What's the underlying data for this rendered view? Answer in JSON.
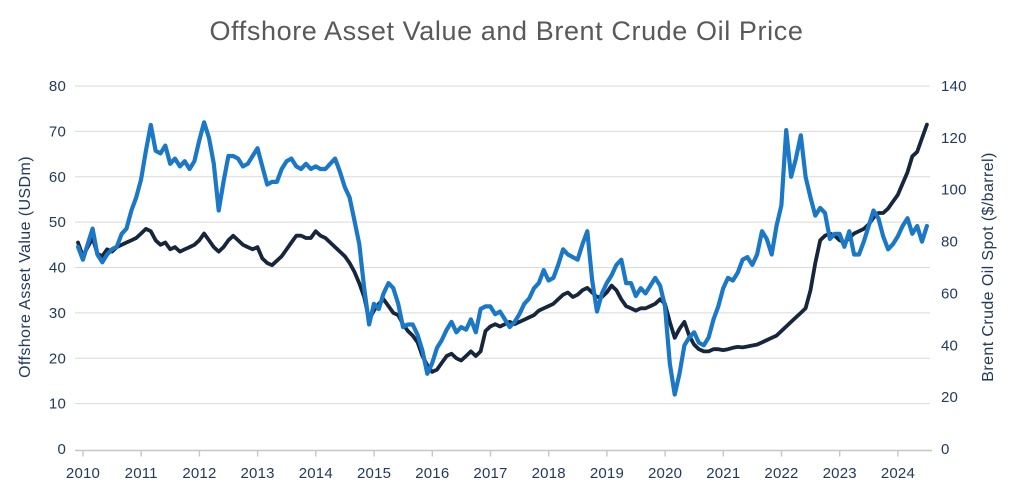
{
  "chart": {
    "title": "Offshore Asset Value and Brent Crude Oil Price"
  },
  "chart_data": {
    "type": "line",
    "title": "Offshore Asset Value and Brent Crude Oil Price",
    "x_unit": "month",
    "x_start": "2010-01",
    "x_end": "2024-08",
    "x_tick_labels": [
      "2010",
      "2011",
      "2012",
      "2013",
      "2014",
      "2015",
      "2016",
      "2017",
      "2018",
      "2019",
      "2020",
      "2021",
      "2022",
      "2023",
      "2024"
    ],
    "grid": "horizontal",
    "legend": "none",
    "left_axis": {
      "label": "Offshore Asset Value (USDm)",
      "min": 0,
      "max": 80,
      "ticks": [
        0,
        10,
        20,
        30,
        40,
        50,
        60,
        70,
        80
      ]
    },
    "right_axis": {
      "label": "Brent Crude Oil Spot ($/barrel)",
      "min": 0,
      "max": 140,
      "ticks": [
        0,
        20,
        40,
        60,
        80,
        100,
        120,
        140
      ]
    },
    "series": [
      {
        "name": "Offshore Asset Value",
        "axis": "left",
        "color": "#16263d",
        "values": [
          45.5,
          42.5,
          44.5,
          46.5,
          43,
          42.5,
          44,
          43.5,
          44.5,
          45,
          45.5,
          46,
          46.5,
          47.5,
          48.5,
          48,
          46,
          45,
          45.5,
          44,
          44.5,
          43.5,
          44,
          44.5,
          45,
          46,
          47.5,
          46,
          44.5,
          43.5,
          44.5,
          46,
          47,
          46,
          45,
          44.5,
          44,
          44.5,
          42,
          41,
          40.5,
          41.5,
          42.5,
          44,
          45.5,
          47,
          47,
          46.5,
          46.5,
          48,
          47,
          46.5,
          45.5,
          44.5,
          43.5,
          42.5,
          41,
          39,
          36.5,
          33.5,
          28.5,
          30.5,
          32,
          33,
          31.5,
          30,
          29.5,
          27.5,
          26,
          25,
          23.5,
          20.5,
          18.5,
          17,
          17.5,
          19,
          20.5,
          21,
          20,
          19.5,
          20.5,
          21.5,
          20.5,
          21.5,
          26,
          27,
          27.5,
          27,
          27.5,
          28,
          27.5,
          28,
          28.5,
          29,
          29.5,
          30.5,
          31,
          31.5,
          32,
          33,
          34,
          34.5,
          33.5,
          34,
          35,
          35.5,
          34.5,
          33.5,
          33.5,
          34.5,
          36,
          35,
          33,
          31.5,
          31,
          30.5,
          31,
          31,
          31.5,
          32,
          33,
          32,
          28,
          24.5,
          26.5,
          28,
          25,
          23,
          22,
          21.5,
          21.5,
          22,
          22,
          21.8,
          22,
          22.3,
          22.5,
          22.4,
          22.6,
          22.8,
          23,
          23.5,
          24,
          24.5,
          25,
          26,
          27,
          28,
          29,
          30,
          31,
          35,
          41,
          46,
          47,
          47.5,
          47,
          46,
          45.5,
          46.5,
          47.5,
          48,
          48.5,
          49.5,
          51,
          52,
          52,
          53,
          54.5,
          56,
          58.5,
          61,
          64.5,
          65.5,
          68.5,
          71.5
        ]
      },
      {
        "name": "Brent Crude Oil Spot",
        "axis": "right",
        "color": "#1b78c6",
        "values": [
          78,
          73,
          79,
          85,
          75,
          72,
          75,
          77,
          78,
          83,
          85,
          92,
          97,
          104,
          115,
          125,
          115,
          114,
          117,
          110,
          112,
          109,
          111,
          108,
          111,
          119,
          126,
          120,
          110,
          92,
          103,
          113,
          113,
          112,
          109,
          110,
          113,
          116,
          109,
          102,
          103,
          103,
          108,
          111,
          112,
          109,
          108,
          110,
          108,
          109,
          108,
          108,
          110,
          112,
          107,
          101,
          97,
          88,
          79,
          62,
          48,
          56,
          54,
          60,
          64,
          62,
          56,
          47,
          48,
          48,
          44,
          38,
          29,
          33,
          39,
          42,
          46,
          49,
          45,
          47,
          46,
          50,
          45,
          54,
          55,
          55,
          52,
          53,
          50,
          47,
          49,
          52,
          56,
          58,
          62,
          64,
          69,
          65,
          66,
          71,
          77,
          75,
          74,
          73,
          79,
          84,
          65,
          53,
          60,
          64,
          67,
          71,
          73,
          64,
          64,
          59,
          62,
          60,
          63,
          66,
          63,
          55,
          33,
          21,
          29,
          40,
          43,
          45,
          41,
          40,
          43,
          50,
          55,
          62,
          66,
          65,
          68,
          73,
          74,
          71,
          75,
          84,
          81,
          75,
          86,
          94,
          123,
          105,
          112,
          121,
          105,
          97,
          90,
          93,
          91,
          81,
          83,
          83,
          78,
          84,
          75,
          75,
          80,
          86,
          92,
          89,
          82,
          77,
          79,
          82,
          86,
          89,
          83,
          86,
          80,
          86
        ]
      }
    ]
  }
}
